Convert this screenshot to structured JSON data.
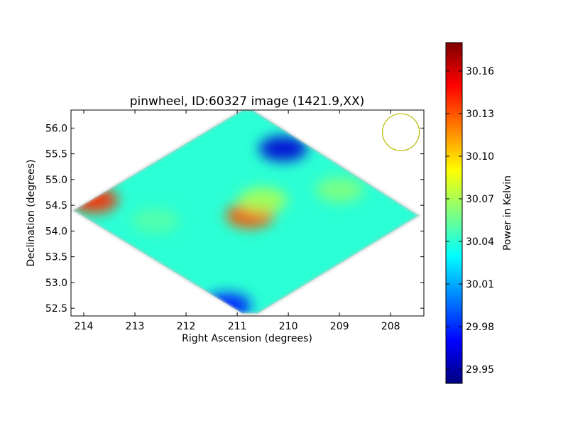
{
  "chart_data": {
    "type": "heatmap",
    "title": "pinwheel, ID:60327 image (1421.9,XX)",
    "xlabel": "Right Ascension (degrees)",
    "ylabel": "Declination (degrees)",
    "colorbar_label": "Power in Kelvin",
    "xlim": [
      214.25,
      207.35
    ],
    "ylim": [
      52.35,
      56.35
    ],
    "x_ticks": [
      214,
      213,
      212,
      211,
      210,
      209,
      208
    ],
    "y_ticks": [
      52.5,
      53.0,
      53.5,
      54.0,
      54.5,
      55.0,
      55.5,
      56.0
    ],
    "y_tick_labels": [
      "52.5",
      "53.0",
      "53.5",
      "54.0",
      "54.5",
      "55.0",
      "55.5",
      "56.0"
    ],
    "colorbar_range": [
      29.94,
      30.18
    ],
    "colorbar_ticks": [
      29.95,
      29.98,
      30.01,
      30.04,
      30.07,
      30.1,
      30.13,
      30.16
    ],
    "colorbar_tick_labels": [
      "29.95",
      "29.98",
      "30.01",
      "30.04",
      "30.07",
      "30.10",
      "30.13",
      "30.16"
    ],
    "colormap": "jet",
    "grid": false,
    "footprint": [
      [
        214.2,
        54.4
      ],
      [
        210.9,
        56.35
      ],
      [
        210.7,
        56.35
      ],
      [
        207.45,
        54.3
      ],
      [
        210.6,
        52.4
      ],
      [
        210.9,
        52.4
      ]
    ],
    "beam_marker": {
      "ra": 207.8,
      "dec": 55.92,
      "color": "#b8b800"
    },
    "features": [
      {
        "ra": 213.8,
        "dec": 54.6,
        "value": 30.14
      },
      {
        "ra": 210.75,
        "dec": 54.3,
        "value": 30.13
      },
      {
        "ra": 210.1,
        "dec": 55.6,
        "value": 29.96
      },
      {
        "ra": 211.2,
        "dec": 52.55,
        "value": 29.975
      },
      {
        "ra": 210.5,
        "dec": 54.6,
        "value": 30.07
      },
      {
        "ra": 209.0,
        "dec": 54.8,
        "value": 30.06
      },
      {
        "ra": 212.6,
        "dec": 54.2,
        "value": 30.05
      }
    ],
    "background_value": 30.04
  }
}
